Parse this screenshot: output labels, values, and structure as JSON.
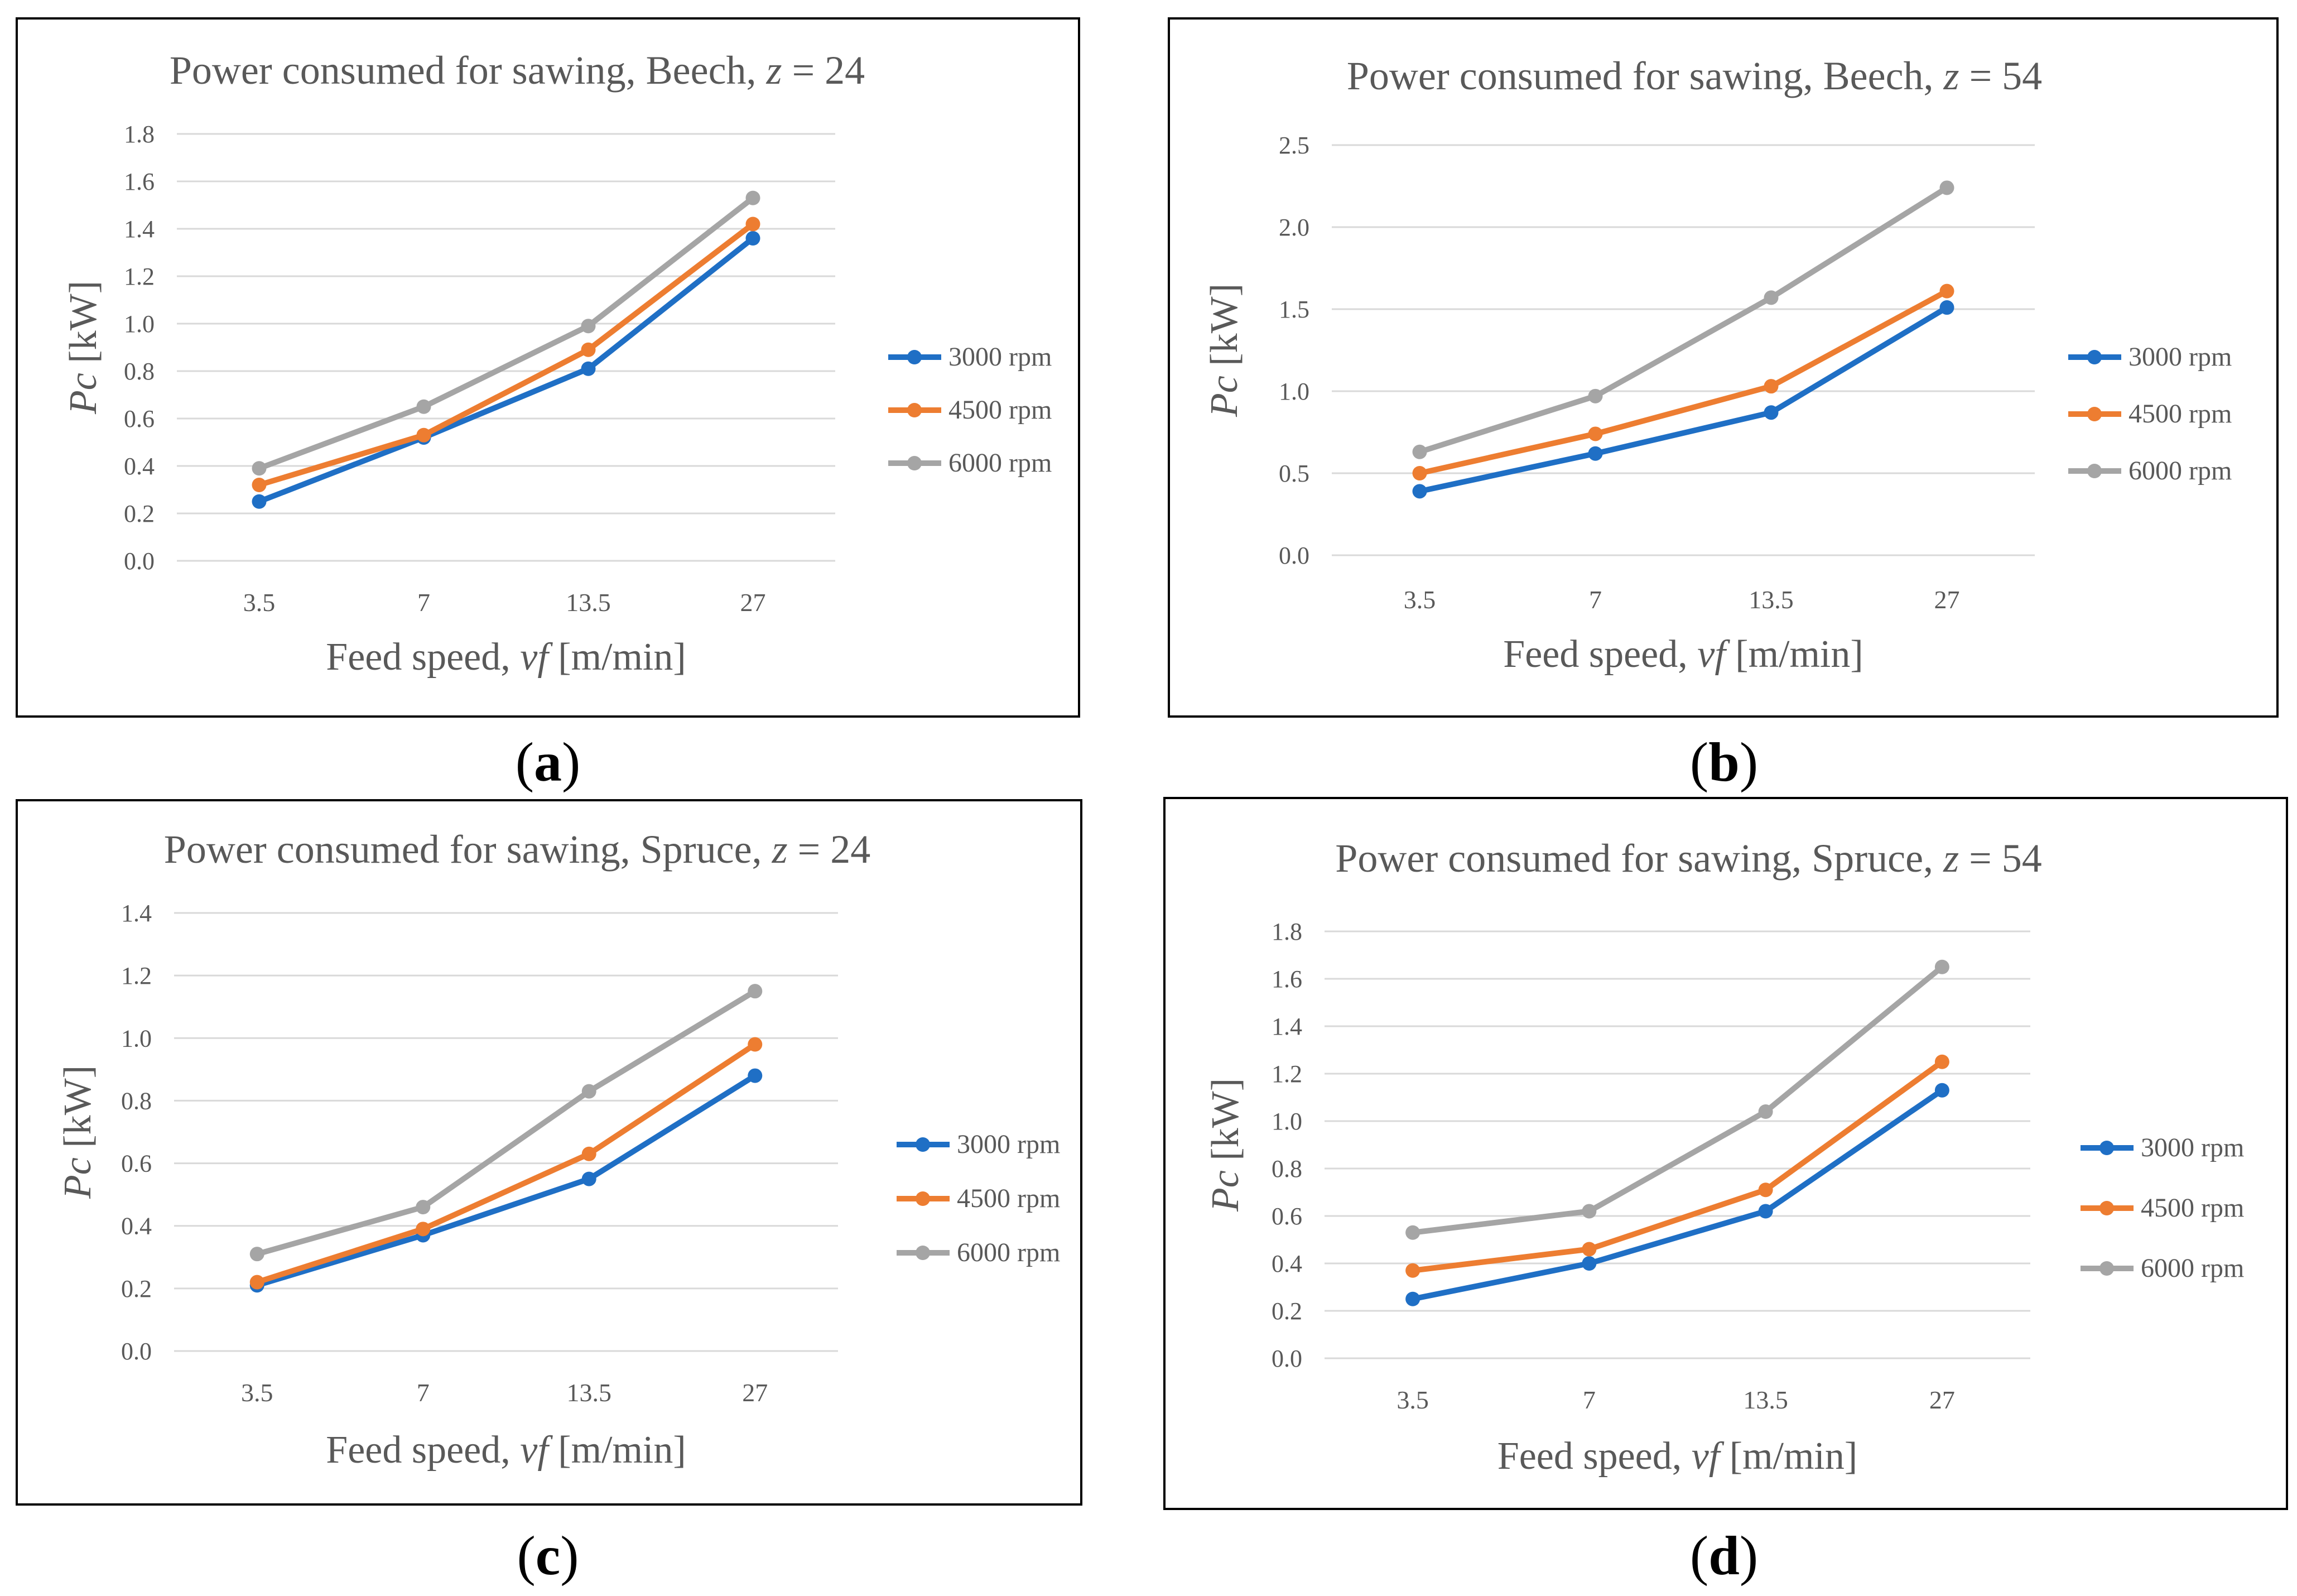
{
  "chart_data": [
    {
      "id": "a",
      "type": "line",
      "title_prefix": "Power consumed for sawing, Beech, ",
      "title_var": "z",
      "title_suffix": " = 24",
      "xlabel_prefix": "Feed speed, ",
      "xlabel_var": "vf",
      "xlabel_suffix": " [m/min]",
      "ylabel_var": "Pc",
      "ylabel_suffix": " [kW]",
      "categories": [
        "3.5",
        "7",
        "13.5",
        "27"
      ],
      "ylim": [
        0,
        1.8
      ],
      "yticks": [
        "0.0",
        "0.2",
        "0.4",
        "0.6",
        "0.8",
        "1.0",
        "1.2",
        "1.4",
        "1.6",
        "1.8"
      ],
      "grid": true,
      "legend": "right",
      "series": [
        {
          "name": "3000 rpm",
          "color": "#1f6fc5",
          "values": [
            0.25,
            0.52,
            0.81,
            1.36
          ]
        },
        {
          "name": "4500 rpm",
          "color": "#ed7d31",
          "values": [
            0.32,
            0.53,
            0.89,
            1.42
          ]
        },
        {
          "name": "6000 rpm",
          "color": "#a5a5a5",
          "values": [
            0.39,
            0.65,
            0.99,
            1.53
          ]
        }
      ],
      "caption": "a"
    },
    {
      "id": "b",
      "type": "line",
      "title_prefix": "Power consumed for sawing, Beech, ",
      "title_var": "z",
      "title_suffix": " = 54",
      "xlabel_prefix": "Feed speed, ",
      "xlabel_var": "vf",
      "xlabel_suffix": " [m/min]",
      "ylabel_var": "Pc",
      "ylabel_suffix": " [kW]",
      "categories": [
        "3.5",
        "7",
        "13.5",
        "27"
      ],
      "ylim": [
        0,
        2.5
      ],
      "yticks": [
        "0.0",
        "0.5",
        "1.0",
        "1.5",
        "2.0",
        "2.5"
      ],
      "grid": true,
      "legend": "right",
      "series": [
        {
          "name": "3000 rpm",
          "color": "#1f6fc5",
          "values": [
            0.39,
            0.62,
            0.87,
            1.51
          ]
        },
        {
          "name": "4500 rpm",
          "color": "#ed7d31",
          "values": [
            0.5,
            0.74,
            1.03,
            1.61
          ]
        },
        {
          "name": "6000 rpm",
          "color": "#a5a5a5",
          "values": [
            0.63,
            0.97,
            1.57,
            2.24
          ]
        }
      ],
      "caption": "b"
    },
    {
      "id": "c",
      "type": "line",
      "title_prefix": "Power consumed for sawing, Spruce, ",
      "title_var": "z",
      "title_suffix": " = 24",
      "xlabel_prefix": "Feed speed, ",
      "xlabel_var": "vf",
      "xlabel_suffix": " [m/min]",
      "ylabel_var": "Pc",
      "ylabel_suffix": " [kW]",
      "categories": [
        "3.5",
        "7",
        "13.5",
        "27"
      ],
      "ylim": [
        0,
        1.4
      ],
      "yticks": [
        "0.0",
        "0.2",
        "0.4",
        "0.6",
        "0.8",
        "1.0",
        "1.2",
        "1.4"
      ],
      "grid": true,
      "legend": "right",
      "series": [
        {
          "name": "3000 rpm",
          "color": "#1f6fc5",
          "values": [
            0.21,
            0.37,
            0.55,
            0.88
          ]
        },
        {
          "name": "4500 rpm",
          "color": "#ed7d31",
          "values": [
            0.22,
            0.39,
            0.63,
            0.98
          ]
        },
        {
          "name": "6000 rpm",
          "color": "#a5a5a5",
          "values": [
            0.31,
            0.46,
            0.83,
            1.15
          ]
        }
      ],
      "caption": "c"
    },
    {
      "id": "d",
      "type": "line",
      "title_prefix": "Power consumed for sawing, Spruce, ",
      "title_var": "z",
      "title_suffix": " = 54",
      "xlabel_prefix": "Feed speed, ",
      "xlabel_var": "vf",
      "xlabel_suffix": " [m/min]",
      "ylabel_var": "Pc",
      "ylabel_suffix": " [kW]",
      "categories": [
        "3.5",
        "7",
        "13.5",
        "27"
      ],
      "ylim": [
        0,
        1.8
      ],
      "yticks": [
        "0.0",
        "0.2",
        "0.4",
        "0.6",
        "0.8",
        "1.0",
        "1.2",
        "1.4",
        "1.6",
        "1.8"
      ],
      "grid": true,
      "legend": "right",
      "series": [
        {
          "name": "3000 rpm",
          "color": "#1f6fc5",
          "values": [
            0.25,
            0.4,
            0.62,
            1.13
          ]
        },
        {
          "name": "4500 rpm",
          "color": "#ed7d31",
          "values": [
            0.37,
            0.46,
            0.71,
            1.25
          ]
        },
        {
          "name": "6000 rpm",
          "color": "#a5a5a5",
          "values": [
            0.53,
            0.62,
            1.04,
            1.65
          ]
        }
      ],
      "caption": "d"
    }
  ]
}
